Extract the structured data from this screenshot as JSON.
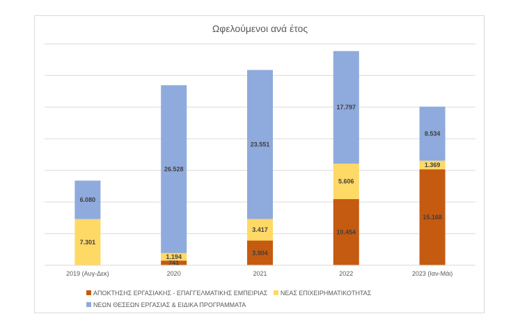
{
  "chart_data": {
    "type": "bar",
    "stacked": true,
    "title": "Ωφελούμενοι ανά έτος",
    "xlabel": "",
    "ylabel": "",
    "ylim": [
      0,
      35000
    ],
    "grid": true,
    "legend_position": "bottom",
    "categories": [
      "2019 (Αυγ-Δεκ)",
      "2020",
      "2021",
      "2022",
      "2023 (Ιαν-Μάι)"
    ],
    "series": [
      {
        "name": "ΑΠΟΚΤΗΣΗΣ ΕΡΓΑΣΙΑΚΗΣ - ΕΠΑΓΓΕΛΜΑΤΙΚΗΣ ΕΜΠΕΙΡΙΑΣ",
        "color": "#c55a11",
        "values": [
          null,
          741,
          3904,
          10454,
          15168
        ],
        "labels": [
          "",
          "741",
          "3.904",
          "10.454",
          "15.168"
        ]
      },
      {
        "name": "ΝΕΑΣ ΕΠΙΧΕΙΡΗΜΑΤΙΚΟΤΗΤΑΣ",
        "color": "#ffd966",
        "values": [
          7301,
          1194,
          3417,
          5606,
          1369
        ],
        "labels": [
          "7.301",
          "1.194",
          "3.417",
          "5.606",
          "1.369"
        ]
      },
      {
        "name": "ΝΕΩΝ ΘΕΣΕΩΝ ΕΡΓΑΣΙΑΣ & ΕΙΔΙΚΑ ΠΡΟΓΡΑΜΜΑΤΑ",
        "color": "#8faadc",
        "values": [
          6080,
          26528,
          23551,
          17797,
          8534
        ],
        "labels": [
          "6.080",
          "26.528",
          "23.551",
          "17.797",
          "8.534"
        ]
      }
    ]
  }
}
